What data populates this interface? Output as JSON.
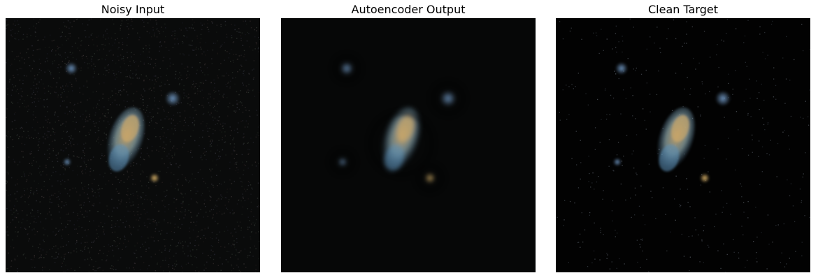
{
  "figure": {
    "panels": [
      {
        "title": "Noisy Input",
        "variant": "noisy",
        "background": "#0a0b0b"
      },
      {
        "title": "Autoencoder Output",
        "variant": "smooth",
        "background": "#060707"
      },
      {
        "title": "Clean Target",
        "variant": "clean",
        "background": "#020202"
      }
    ]
  },
  "colors": {
    "galaxy_warm": "#c9a66b",
    "galaxy_cool": "#5b8fb8",
    "star_blue": "#6e95c0",
    "star_gold": "#d9b36a"
  }
}
